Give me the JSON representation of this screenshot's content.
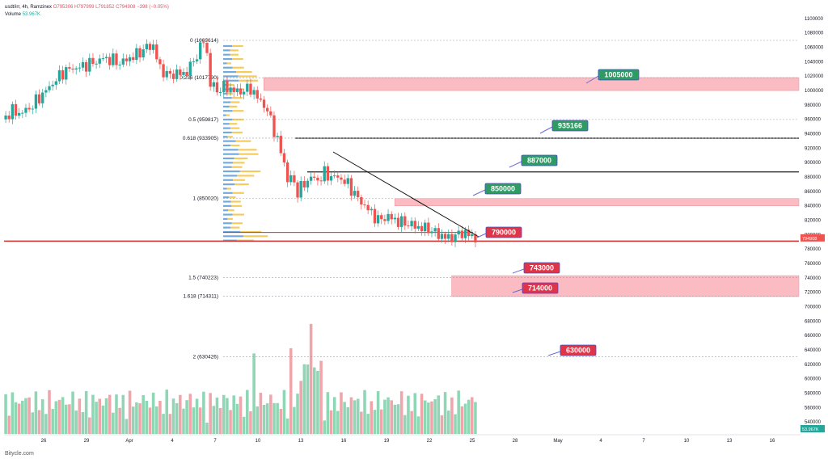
{
  "legend": {
    "symbol": "usdt/irr, 4h, Ramzinex",
    "ohlc": "O795306  H797999  L791852  C794908  −398 (−0.05%)",
    "volume_label": "Volume",
    "volume_value": "53.967K"
  },
  "watermark": "Bitycle.com",
  "colors": {
    "up": "#26a69a",
    "down": "#ef5350",
    "zone": "#f8a6ae",
    "green_tag": "#2e9b63",
    "red_tag": "#e03548",
    "vol_up": "#8fd6b5",
    "vol_down": "#f0a5ab",
    "vp_blue": "#5b9bd5",
    "vp_yellow": "#f5c242"
  },
  "chart_data": {
    "type": "candlestick",
    "y_axis": {
      "min": 530000,
      "max": 1110000,
      "ticks": [
        540000,
        560000,
        580000,
        600000,
        620000,
        640000,
        660000,
        680000,
        700000,
        720000,
        740000,
        760000,
        780000,
        800000,
        820000,
        840000,
        860000,
        880000,
        900000,
        920000,
        940000,
        960000,
        980000,
        1000000,
        1020000,
        1040000,
        1060000,
        1080000,
        1100000
      ]
    },
    "x_axis": {
      "labels": [
        "26",
        "29",
        "Apr",
        "4",
        "7",
        "10",
        "13",
        "16",
        "19",
        "22",
        "25",
        "28",
        "May",
        "4",
        "7",
        "10",
        "13",
        "16"
      ]
    },
    "price_series": [
      [
        0,
        960000
      ],
      [
        3,
        972000
      ],
      [
        5,
        968000
      ],
      [
        8,
        975000
      ],
      [
        10,
        985000
      ],
      [
        12,
        995000
      ],
      [
        15,
        1010000
      ],
      [
        18,
        1025000
      ],
      [
        20,
        1030000
      ],
      [
        23,
        1032000
      ],
      [
        25,
        1036000
      ],
      [
        28,
        1040000
      ],
      [
        30,
        1045000
      ],
      [
        33,
        1042000
      ],
      [
        35,
        1038000
      ],
      [
        38,
        1045000
      ],
      [
        40,
        1050000
      ],
      [
        43,
        1060000
      ],
      [
        45,
        1062000
      ],
      [
        47,
        1030000
      ],
      [
        50,
        1020000
      ],
      [
        52,
        1025000
      ],
      [
        54,
        1022000
      ],
      [
        57,
        1040000
      ],
      [
        59,
        1060000
      ],
      [
        60,
        1069614
      ],
      [
        61,
        1050000
      ],
      [
        62,
        1010000
      ],
      [
        64,
        1000000
      ],
      [
        66,
        1005000
      ],
      [
        68,
        1002000
      ],
      [
        70,
        998000
      ],
      [
        72,
        1000000
      ],
      [
        74,
        1003000
      ],
      [
        76,
        990000
      ],
      [
        78,
        980000
      ],
      [
        80,
        960000
      ],
      [
        82,
        930000
      ],
      [
        84,
        900000
      ],
      [
        85,
        875000
      ],
      [
        86,
        880000
      ],
      [
        88,
        860000
      ],
      [
        90,
        870000
      ],
      [
        92,
        880000
      ],
      [
        94,
        875000
      ],
      [
        96,
        885000
      ],
      [
        98,
        880000
      ],
      [
        100,
        880000
      ],
      [
        103,
        870000
      ],
      [
        106,
        850000
      ],
      [
        109,
        835000
      ],
      [
        112,
        820000
      ],
      [
        115,
        825000
      ],
      [
        118,
        818000
      ],
      [
        121,
        815000
      ],
      [
        124,
        810000
      ],
      [
        127,
        808000
      ],
      [
        130,
        800000
      ],
      [
        133,
        795000
      ],
      [
        135,
        798000
      ],
      [
        137,
        803000
      ],
      [
        139,
        800000
      ],
      [
        141,
        794908
      ]
    ],
    "current_price": {
      "value": 794908,
      "label": "794908"
    },
    "volume_label": "53.967K",
    "fibonacci": [
      {
        "label": "0 (1069614)",
        "value": 1069614
      },
      {
        "label": "0.236 (1017790)",
        "value": 1017790
      },
      {
        "label": "0.5 (959817)",
        "value": 959817
      },
      {
        "label": "0.618 (933905)",
        "value": 933905
      },
      {
        "label": "1 (850020)",
        "value": 850020
      },
      {
        "label": "1.5 (740223)",
        "value": 740223
      },
      {
        "label": "1.618 (714311)",
        "value": 714311
      },
      {
        "label": "2 (630426)",
        "value": 630426
      }
    ],
    "horizontal_lines": [
      {
        "value": 933905
      },
      {
        "value": 887000
      },
      {
        "value": 803000
      },
      {
        "value": 791000
      }
    ],
    "zones": [
      {
        "from": 1000000,
        "to": 1018000,
        "start_day": 10.3
      },
      {
        "from": 840000,
        "to": 850000,
        "start_day": 19.5
      },
      {
        "from": 714000,
        "to": 743000,
        "start_day": 23.5
      }
    ],
    "targets": [
      {
        "label": "1005000",
        "color": "green",
        "value": 1005000
      },
      {
        "label": "935166",
        "color": "green",
        "value": 935166
      },
      {
        "label": "887000",
        "color": "green",
        "value": 887000
      },
      {
        "label": "850000",
        "color": "green",
        "value": 850000
      },
      {
        "label": "790000",
        "color": "red",
        "value": 790000
      },
      {
        "label": "743000",
        "color": "red",
        "value": 743000
      },
      {
        "label": "714000",
        "color": "red",
        "value": 714000
      },
      {
        "label": "630000",
        "color": "red",
        "value": 630000
      }
    ]
  }
}
